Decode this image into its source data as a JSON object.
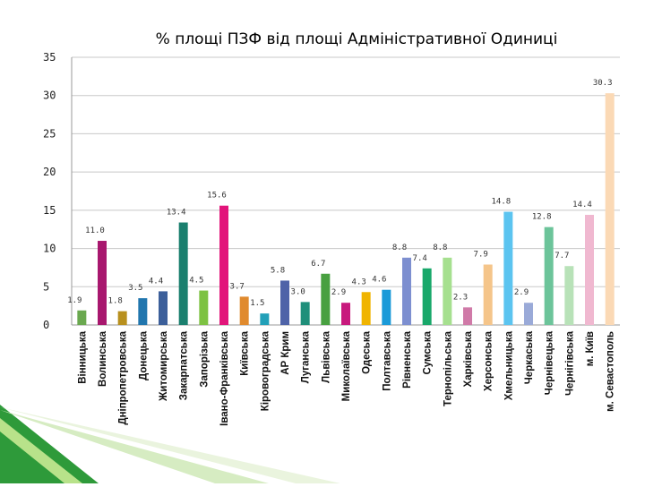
{
  "chart_data": {
    "type": "bar",
    "title": "% площі ПЗФ від площі Адміністративної Одиниці",
    "xlabel": "",
    "ylabel": "",
    "ylim": [
      0,
      35
    ],
    "yticks": [
      "0",
      "5",
      "10",
      "15",
      "20",
      "25",
      "30",
      "35"
    ],
    "grid": true,
    "legend": "none",
    "categories": [
      "Вінницька",
      "Волинська",
      "Дніпропетровська",
      "Донецька",
      "Житомирська",
      "Закарпатська",
      "Запорізька",
      "Івано-Франківська",
      "Київська",
      "Кіровоградська",
      "АР Крим",
      "Луганська",
      "Львівська",
      "Миколаївська",
      "Одеська",
      "Полтавська",
      "Рівненська",
      "Сумська",
      "Тернопільська",
      "Харківська",
      "Херсонська",
      "Хмельницька",
      "Черкаська",
      "Чернівецька",
      "Чернігівська",
      "м. Київ",
      "м. Севастополь"
    ],
    "values": [
      1.9,
      11.0,
      1.8,
      3.5,
      4.4,
      13.4,
      4.5,
      15.6,
      3.7,
      1.5,
      5.8,
      3.0,
      6.7,
      2.9,
      4.3,
      4.6,
      8.8,
      7.4,
      8.8,
      2.3,
      7.9,
      14.8,
      2.9,
      12.8,
      7.7,
      14.4,
      30.3
    ],
    "value_labels": [
      "1.9",
      "11.0",
      "1.8",
      "3.5",
      "4.4",
      "13.4",
      "4.5",
      "15.6",
      "3.7",
      "1.5",
      "5.8",
      "3.0",
      "6.7",
      "2.9",
      "4.3",
      "4.6",
      "8.8",
      "7.4",
      "8.8",
      "2.3",
      "7.9",
      "14.8",
      "2.9",
      "12.8",
      "7.7",
      "14.4",
      "30.3"
    ],
    "colors": [
      "#6aa84f",
      "#a8176e",
      "#b8901e",
      "#2176ae",
      "#3c5f9a",
      "#1a7f6e",
      "#7dc242",
      "#e2147a",
      "#e08a2e",
      "#22a0b8",
      "#4f63a8",
      "#1f8f7a",
      "#48a040",
      "#c8197d",
      "#f0b400",
      "#1a9ad8",
      "#7d8fd0",
      "#19a86a",
      "#a6e08f",
      "#d07aa8",
      "#f5c58a",
      "#5bc4f0",
      "#9aaad8",
      "#6cc49a",
      "#b8e2b8",
      "#f0b8d0",
      "#fbd9b5"
    ]
  }
}
